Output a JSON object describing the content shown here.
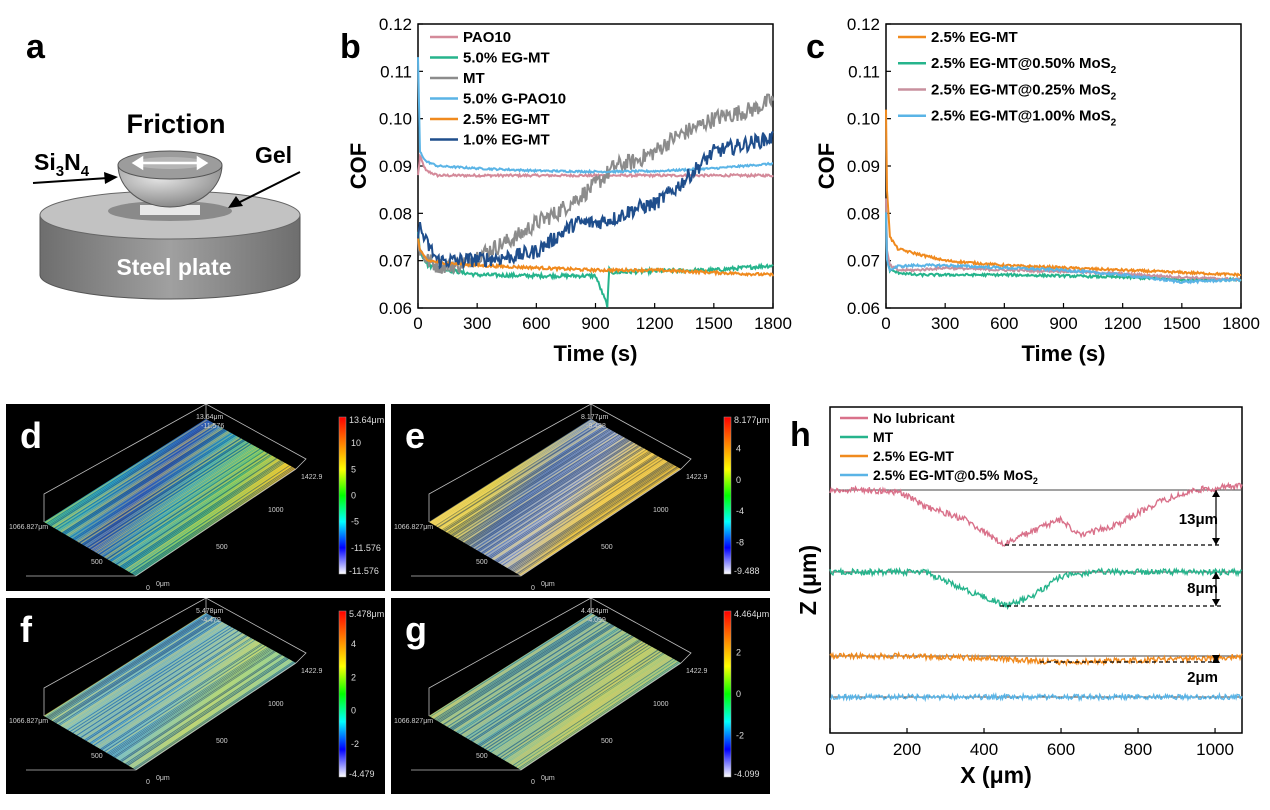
{
  "panel_labels": {
    "a": "a",
    "b": "b",
    "c": "c",
    "d": "d",
    "e": "e",
    "f": "f",
    "g": "g",
    "h": "h"
  },
  "schematic": {
    "friction": "Friction",
    "si3n4_main": "Si",
    "si3n4_sub1": "3",
    "si3n4_mid": "N",
    "si3n4_sub2": "4",
    "gel": "Gel",
    "steel_plate": "Steel plate",
    "colors": {
      "plate_top": "#b3b3b3",
      "plate_side": "#8c8c8c",
      "ball": "#a6a6a6"
    }
  },
  "surfaces": [
    {
      "id": "d",
      "zmax": "13.64μm",
      "zmin_top": "-11.576",
      "zmax_top": "13.64μm",
      "ticks": [
        "10",
        "5",
        "0",
        "-5",
        "-11.576"
      ],
      "tick_max": "13.64μm",
      "bottom": "-11.576",
      "x_labels": [
        "1066.827μm",
        "500",
        "0",
        "0μm",
        "500",
        "1000",
        "1422.9"
      ],
      "theme": "rainbow"
    },
    {
      "id": "e",
      "zmax": "8.177μm",
      "zmin_top": "-9.488",
      "ticks": [
        "4",
        "0",
        "-4",
        "-8"
      ],
      "tick_max": "8.177μm",
      "bottom": "-9.488",
      "x_labels": [
        "1066.827μm",
        "500",
        "0",
        "0μm",
        "500",
        "1000",
        "1422.9"
      ],
      "theme": "yellow"
    },
    {
      "id": "f",
      "zmax": "5.478μm",
      "zmin_top": "-4.479",
      "ticks": [
        "4",
        "2",
        "0",
        "-2"
      ],
      "tick_max": "5.478μm",
      "bottom": "-4.479",
      "x_labels": [
        "1066.827μm",
        "500",
        "0",
        "0μm",
        "500",
        "1000",
        "1422.9"
      ],
      "theme": "cyan"
    },
    {
      "id": "g",
      "zmax": "4.464μm",
      "zmin_top": "-4.099",
      "ticks": [
        "2",
        "0",
        "-2"
      ],
      "tick_max": "4.464μm",
      "bottom": "-4.099",
      "x_labels": [
        "1066.827μm",
        "500",
        "0",
        "0μm",
        "500",
        "1000",
        "1422.9"
      ],
      "theme": "teal"
    }
  ],
  "chart_data": [
    {
      "id": "b",
      "type": "line",
      "xlabel": "Time (s)",
      "ylabel": "COF",
      "xlim": [
        0,
        1800
      ],
      "ylim": [
        0.06,
        0.12
      ],
      "xticks": [
        0,
        300,
        600,
        900,
        1200,
        1500,
        1800
      ],
      "yticks": [
        0.06,
        0.07,
        0.08,
        0.09,
        0.1,
        0.11,
        0.12
      ],
      "ytick_labels": [
        "0.06",
        "0.07",
        "0.08",
        "0.09",
        "0.10",
        "0.11",
        "0.12"
      ],
      "legend_position": "top-left",
      "series": [
        {
          "name": "PAO10",
          "color": "#d48a9a",
          "x": [
            0,
            10,
            40,
            100,
            300,
            600,
            900,
            1200,
            1500,
            1800
          ],
          "y": [
            0.088,
            0.092,
            0.089,
            0.088,
            0.088,
            0.088,
            0.088,
            0.088,
            0.088,
            0.088
          ]
        },
        {
          "name": "5.0% EG-MT",
          "color": "#26b48c",
          "x": [
            0,
            10,
            50,
            150,
            300,
            600,
            900,
            960,
            970,
            990,
            1200,
            1500,
            1800
          ],
          "y": [
            0.076,
            0.072,
            0.069,
            0.068,
            0.067,
            0.0668,
            0.0668,
            0.0605,
            0.068,
            0.0675,
            0.0678,
            0.068,
            0.069
          ]
        },
        {
          "name": "MT",
          "color": "#8c8c8c",
          "x": [
            0,
            10,
            50,
            100,
            200,
            300,
            400,
            500,
            600,
            700,
            800,
            900,
            1000,
            1100,
            1200,
            1300,
            1400,
            1500,
            1600,
            1700,
            1800
          ],
          "y": [
            0.075,
            0.072,
            0.07,
            0.069,
            0.069,
            0.071,
            0.073,
            0.075,
            0.078,
            0.08,
            0.083,
            0.086,
            0.09,
            0.091,
            0.093,
            0.096,
            0.098,
            0.1,
            0.101,
            0.102,
            0.104
          ]
        },
        {
          "name": "5.0% G-PAO10",
          "color": "#5ab4e6",
          "x": [
            0,
            10,
            40,
            100,
            300,
            600,
            900,
            1200,
            1500,
            1800
          ],
          "y": [
            0.113,
            0.093,
            0.091,
            0.09,
            0.0895,
            0.089,
            0.0888,
            0.0889,
            0.0895,
            0.0905
          ]
        },
        {
          "name": "2.5% EG-MT",
          "color": "#f08a1e",
          "x": [
            0,
            10,
            50,
            150,
            300,
            600,
            900,
            1200,
            1500,
            1800
          ],
          "y": [
            0.075,
            0.072,
            0.07,
            0.0695,
            0.069,
            0.0685,
            0.068,
            0.068,
            0.0675,
            0.067
          ]
        },
        {
          "name": "1.0% EG-MT",
          "color": "#1f4e8c",
          "x": [
            0,
            10,
            40,
            100,
            200,
            400,
            500,
            600,
            700,
            800,
            900,
            1000,
            1100,
            1200,
            1300,
            1400,
            1500,
            1600,
            1700,
            1800
          ],
          "y": [
            0.076,
            0.077,
            0.074,
            0.07,
            0.07,
            0.0705,
            0.071,
            0.072,
            0.075,
            0.078,
            0.078,
            0.079,
            0.081,
            0.082,
            0.085,
            0.089,
            0.093,
            0.094,
            0.095,
            0.096
          ]
        }
      ]
    },
    {
      "id": "c",
      "type": "line",
      "xlabel": "Time (s)",
      "ylabel": "COF",
      "xlim": [
        0,
        1800
      ],
      "ylim": [
        0.06,
        0.12
      ],
      "xticks": [
        0,
        300,
        600,
        900,
        1200,
        1500,
        1800
      ],
      "yticks": [
        0.06,
        0.07,
        0.08,
        0.09,
        0.1,
        0.11,
        0.12
      ],
      "ytick_labels": [
        "0.06",
        "0.07",
        "0.08",
        "0.09",
        "0.10",
        "0.11",
        "0.12"
      ],
      "legend_position": "top-left",
      "series": [
        {
          "name": "2.5% EG-MT",
          "name_sub": "",
          "color": "#f08a1e",
          "x": [
            0,
            5,
            20,
            60,
            150,
            300,
            600,
            900,
            1200,
            1500,
            1800
          ],
          "y": [
            0.102,
            0.085,
            0.075,
            0.0725,
            0.0715,
            0.07,
            0.069,
            0.0685,
            0.068,
            0.0675,
            0.067
          ]
        },
        {
          "name": "2.5% EG-MT@0.50% MoS",
          "name_sub": "2",
          "color": "#26b48c",
          "x": [
            0,
            5,
            20,
            60,
            150,
            300,
            600,
            900,
            1200,
            1500,
            1800
          ],
          "y": [
            0.081,
            0.071,
            0.068,
            0.0675,
            0.067,
            0.067,
            0.067,
            0.0668,
            0.0665,
            0.066,
            0.066
          ]
        },
        {
          "name": "2.5% EG-MT@0.25% MoS",
          "name_sub": "2",
          "color": "#c8909e",
          "x": [
            0,
            5,
            20,
            60,
            150,
            300,
            600,
            900,
            1200,
            1500,
            1800
          ],
          "y": [
            0.083,
            0.072,
            0.069,
            0.068,
            0.068,
            0.0685,
            0.068,
            0.0678,
            0.0672,
            0.0665,
            0.066
          ]
        },
        {
          "name": "2.5% EG-MT@1.00% MoS",
          "name_sub": "2",
          "color": "#5ab4e6",
          "x": [
            0,
            5,
            20,
            60,
            150,
            300,
            600,
            900,
            1200,
            1500,
            1800
          ],
          "y": [
            0.08,
            0.07,
            0.068,
            0.0688,
            0.069,
            0.069,
            0.0685,
            0.068,
            0.067,
            0.0655,
            0.066
          ]
        }
      ]
    },
    {
      "id": "h",
      "type": "line",
      "xlabel": "X (μm)",
      "ylabel": "Z (μm)",
      "xlim": [
        0,
        1070
      ],
      "xticks": [
        0,
        200,
        400,
        600,
        800,
        1000
      ],
      "legend_position": "top-left",
      "annotations": [
        "13μm",
        "8μm",
        "2μm"
      ],
      "series": [
        {
          "name": "No lubricant",
          "name_sub": "",
          "color": "#d9718a",
          "x": [
            0,
            100,
            180,
            250,
            350,
            450,
            520,
            600,
            650,
            750,
            850,
            950,
            1070
          ],
          "y": [
            0,
            0,
            -0.5,
            -4,
            -7,
            -13,
            -10,
            -7,
            -11,
            -8,
            -3,
            0,
            1
          ]
        },
        {
          "name": "MT",
          "name_sub": "",
          "color": "#26b48c",
          "x": [
            0,
            100,
            250,
            320,
            400,
            460,
            520,
            600,
            700,
            850,
            1070
          ],
          "y": [
            0,
            0,
            0,
            -3,
            -6,
            -8,
            -6,
            -1,
            0,
            0,
            0
          ]
        },
        {
          "name": "2.5% EG-MT",
          "name_sub": "",
          "color": "#f08a1e",
          "x": [
            0,
            200,
            400,
            500,
            600,
            800,
            1000,
            1070
          ],
          "y": [
            0,
            0,
            -0.5,
            -1,
            -1.5,
            -1,
            -0.5,
            0
          ]
        },
        {
          "name": "2.5% EG-MT@0.5% MoS",
          "name_sub": "2",
          "color": "#5ab4e6",
          "x": [
            0,
            300,
            600,
            900,
            1070
          ],
          "y": [
            0,
            0,
            0,
            0,
            0
          ]
        }
      ]
    }
  ]
}
